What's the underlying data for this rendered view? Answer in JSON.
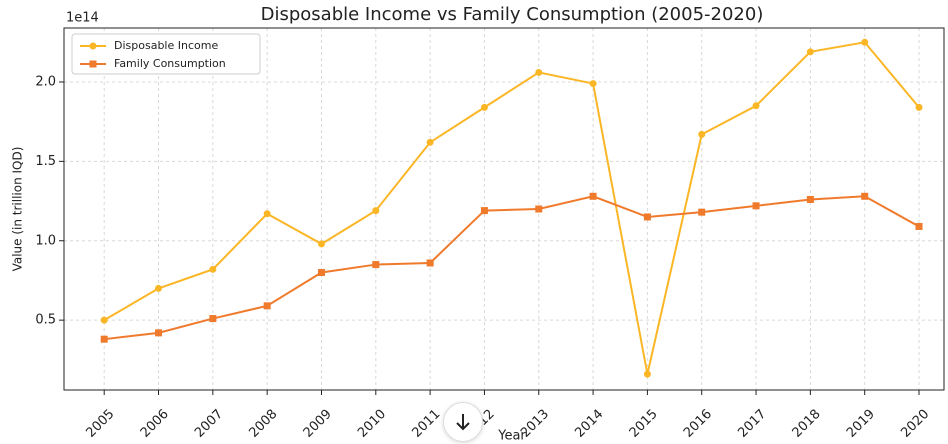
{
  "chart_data": {
    "type": "line",
    "title": "Disposable Income vs Family Consumption (2005-2020)",
    "xlabel": "Year",
    "ylabel": "Value (in trillion IQD)",
    "y_offset_label": "1e14",
    "x": [
      2005,
      2006,
      2007,
      2008,
      2009,
      2010,
      2011,
      2012,
      2013,
      2014,
      2015,
      2016,
      2017,
      2018,
      2019,
      2020
    ],
    "series": [
      {
        "name": "Disposable Income",
        "color": "#fbb626",
        "marker": "circle",
        "values": [
          0.5,
          0.7,
          0.82,
          1.17,
          0.98,
          1.19,
          1.62,
          1.84,
          2.06,
          1.99,
          0.16,
          1.67,
          1.85,
          2.19,
          2.25,
          1.84
        ]
      },
      {
        "name": "Family Consumption",
        "color": "#f07a2c",
        "marker": "square",
        "values": [
          0.38,
          0.42,
          0.51,
          0.59,
          0.8,
          0.85,
          0.86,
          1.19,
          1.2,
          1.28,
          1.15,
          1.18,
          1.22,
          1.26,
          1.28,
          1.09
        ]
      }
    ],
    "xlim": [
      2004.26,
      2020.46
    ],
    "xticks": [
      2005,
      2006,
      2007,
      2008,
      2009,
      2010,
      2011,
      2012,
      2013,
      2014,
      2015,
      2016,
      2017,
      2018,
      2019,
      2020
    ],
    "ylim": [
      0.06,
      2.34
    ],
    "yticks": [
      0.5,
      {
        "value": 1,
        "label": "1.0"
      },
      1.5,
      {
        "value": 2,
        "label": "2.0"
      }
    ],
    "grid": true,
    "legend": "upper left"
  }
}
